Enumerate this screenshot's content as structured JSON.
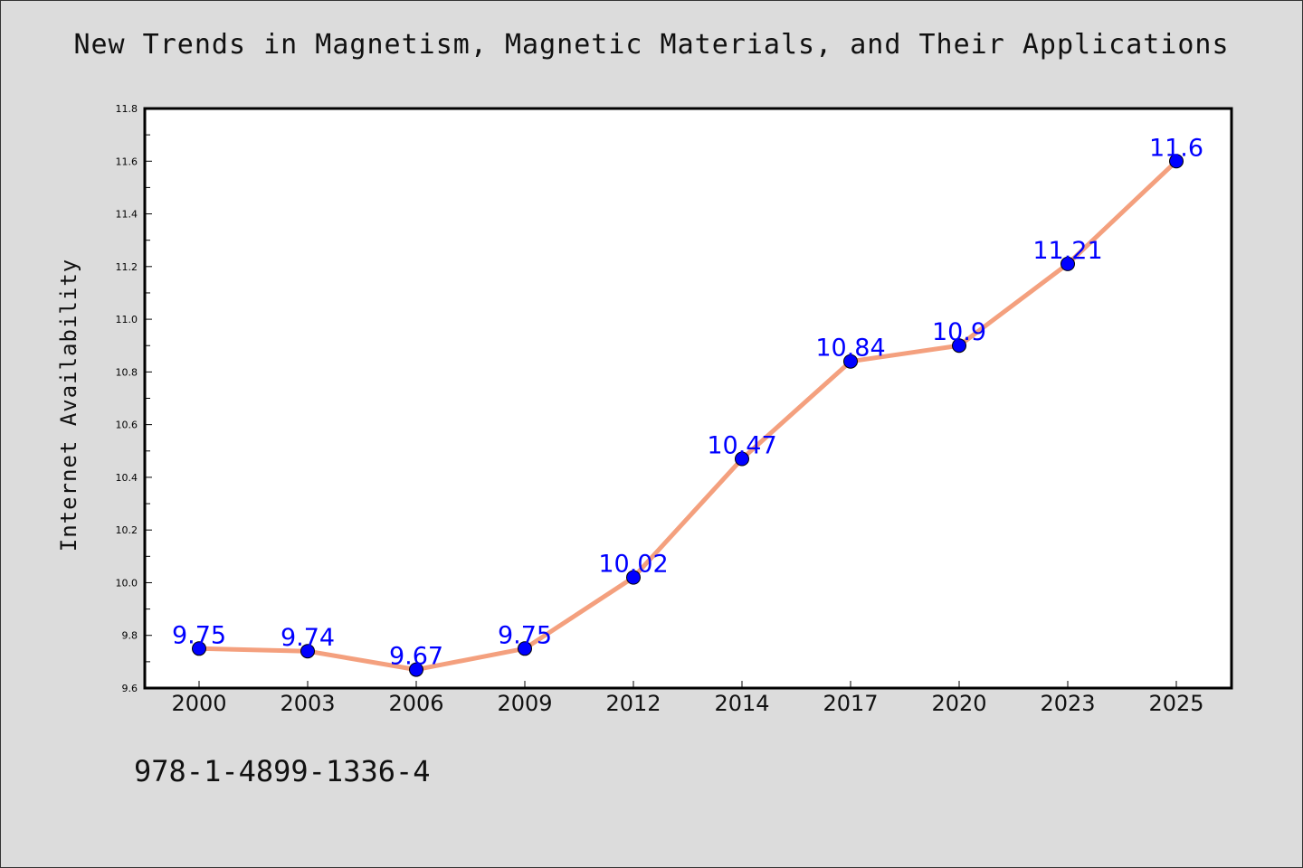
{
  "title": "New Trends in Magnetism, Magnetic Materials, and Their Applications",
  "footer": "978-1-4899-1336-4",
  "colors": {
    "background": "#dcdcdc",
    "plot_area": "#ffffff",
    "line": "#f4a07e",
    "marker": "#0000ff",
    "data_label": "#0000ff"
  },
  "chart_data": {
    "type": "line",
    "title": "New Trends in Magnetism, Magnetic Materials, and Their Applications",
    "xlabel": "",
    "ylabel": "Internet Availability",
    "categories": [
      "2000",
      "2003",
      "2006",
      "2009",
      "2012",
      "2014",
      "2017",
      "2020",
      "2023",
      "2025"
    ],
    "series": [
      {
        "values": [
          9.75,
          9.74,
          9.67,
          9.75,
          10.02,
          10.47,
          10.84,
          10.9,
          11.21,
          11.6
        ],
        "labels": [
          "9.75",
          "9.74",
          "9.67",
          "9.75",
          "10.02",
          "10.47",
          "10.84",
          "10.9",
          "11.21",
          "11.6"
        ]
      }
    ],
    "ylim": [
      9.6,
      11.8
    ],
    "yticks": [
      "9.6",
      "9.8",
      "10.0",
      "10.2",
      "10.4",
      "10.6",
      "10.8",
      "11.0",
      "11.2",
      "11.4",
      "11.6",
      "11.8"
    ],
    "grid": false,
    "legend": "none"
  }
}
